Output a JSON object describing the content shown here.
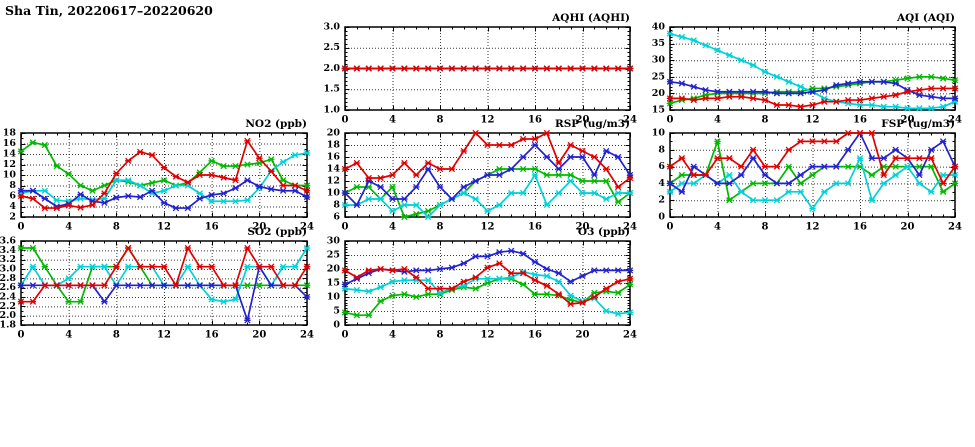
{
  "page": {
    "title": "Sha Tin, 20220617–20220620"
  },
  "colors": {
    "red": "#e10000",
    "green": "#00b900",
    "blue": "#2222d0",
    "cyan": "#00d2d8"
  },
  "chart_data": [
    {
      "id": "aqhi",
      "type": "line",
      "title": "AQHI (AQHI)",
      "xlim": [
        0,
        24
      ],
      "x_ticks": [
        0,
        4,
        8,
        12,
        16,
        20,
        24
      ],
      "x_minor": 1,
      "x_start": 0,
      "x_step": 1,
      "ylim": [
        1.0,
        3.0
      ],
      "y_major": 0.5,
      "y_minor": 0.1,
      "y_decimals": 1,
      "grid": true,
      "legend": "none",
      "series": [
        {
          "name": "green",
          "color": "#00b900",
          "values": [
            2,
            2,
            2,
            2,
            2,
            2,
            2,
            2,
            2,
            2,
            2,
            2,
            2,
            2,
            2,
            2,
            2,
            2,
            2,
            2,
            2,
            2,
            2,
            2,
            2
          ]
        },
        {
          "name": "cyan",
          "color": "#00d2d8",
          "values": [
            2,
            2,
            2,
            2,
            2,
            2,
            2,
            2,
            2,
            2,
            2,
            2,
            2,
            2,
            2,
            2,
            2,
            2,
            2,
            2,
            2,
            2,
            2,
            2,
            2
          ]
        },
        {
          "name": "blue",
          "color": "#2222d0",
          "values": [
            2,
            2,
            2,
            2,
            2,
            2,
            2,
            2,
            2,
            2,
            2,
            2,
            2,
            2,
            2,
            2,
            2,
            2,
            2,
            2,
            2,
            2,
            2,
            2,
            2
          ]
        },
        {
          "name": "red",
          "color": "#e10000",
          "values": [
            2,
            2,
            2,
            2,
            2,
            2,
            2,
            2,
            2,
            2,
            2,
            2,
            2,
            2,
            2,
            2,
            2,
            2,
            2,
            2,
            2,
            2,
            2,
            2,
            2
          ]
        }
      ]
    },
    {
      "id": "aqi",
      "type": "line",
      "title": "AQI (AQI)",
      "xlim": [
        0,
        24
      ],
      "x_ticks": [
        0,
        4,
        8,
        12,
        16,
        20,
        24
      ],
      "x_minor": 1,
      "x_start": 0,
      "x_step": 1,
      "ylim": [
        15,
        40
      ],
      "y_major": 5,
      "y_minor": 1,
      "y_decimals": 0,
      "grid": true,
      "legend": "none",
      "series": [
        {
          "name": "green",
          "color": "#00b900",
          "values": [
            17,
            18,
            18.5,
            19.5,
            20,
            20,
            20,
            20,
            20,
            20.5,
            20.5,
            20.5,
            21.5,
            21.5,
            22,
            22.5,
            23,
            23.5,
            23.5,
            24,
            24.5,
            25,
            25,
            24.5,
            24
          ]
        },
        {
          "name": "cyan",
          "color": "#00d2d8",
          "values": [
            38,
            37,
            36,
            34.5,
            33,
            31.5,
            30,
            28.5,
            26.5,
            25,
            23.5,
            22,
            20.5,
            18.5,
            17.5,
            17,
            16.5,
            16.5,
            16,
            16,
            15.5,
            15.5,
            15.5,
            16,
            17.5
          ]
        },
        {
          "name": "blue",
          "color": "#2222d0",
          "values": [
            23.5,
            23,
            22,
            21,
            20.5,
            20.5,
            20.5,
            20.5,
            20.5,
            20,
            20,
            20,
            20.5,
            21,
            22.5,
            23,
            23.5,
            23.5,
            23.5,
            23,
            21,
            19.5,
            19,
            18.5,
            18.5
          ]
        },
        {
          "name": "red",
          "color": "#e10000",
          "values": [
            18.5,
            18.5,
            18,
            18.5,
            18.5,
            19,
            19,
            18.5,
            18,
            16.5,
            16.5,
            16,
            16.5,
            17.5,
            17.5,
            18,
            18,
            18.5,
            19,
            19.5,
            20.5,
            21,
            21.5,
            21.5,
            21.5
          ]
        }
      ]
    },
    {
      "id": "no2",
      "type": "line",
      "title": "NO2 (ppb)",
      "xlim": [
        0,
        24
      ],
      "x_ticks": [
        0,
        4,
        8,
        12,
        16,
        20,
        24
      ],
      "x_minor": 1,
      "x_start": 0,
      "x_step": 1,
      "ylim": [
        2,
        18
      ],
      "y_major": 2,
      "y_minor": 1,
      "y_decimals": 0,
      "grid": true,
      "legend": "none",
      "series": [
        {
          "name": "green",
          "color": "#00b900",
          "values": [
            14.5,
            16.2,
            15.7,
            11.7,
            10.2,
            8,
            7,
            8,
            9,
            8.7,
            8,
            8.5,
            9,
            8,
            8.5,
            10.5,
            12.7,
            11.7,
            11.7,
            12,
            12.3,
            13,
            9,
            8,
            8
          ]
        },
        {
          "name": "cyan",
          "color": "#00d2d8",
          "values": [
            6.5,
            7,
            7,
            5.2,
            5,
            5.5,
            5.3,
            5.5,
            9,
            9,
            8,
            6.5,
            7,
            8,
            8,
            6.5,
            5,
            5,
            5,
            5.2,
            7.5,
            10.8,
            12.5,
            13.8,
            14.2
          ]
        },
        {
          "name": "blue",
          "color": "#2222d0",
          "values": [
            7,
            7,
            5.5,
            4,
            4.5,
            6.3,
            5,
            4.7,
            5.7,
            6,
            5.8,
            7,
            4.7,
            3.7,
            3.7,
            5.5,
            6.2,
            6.5,
            7.5,
            9,
            7.8,
            7.3,
            7,
            7,
            5.8
          ]
        },
        {
          "name": "red",
          "color": "#e10000",
          "values": [
            6,
            5.5,
            3.7,
            3.7,
            4.2,
            3.8,
            4.3,
            6.5,
            10.3,
            12.7,
            14.4,
            13.8,
            11.4,
            9.7,
            8.6,
            10,
            10,
            9.5,
            9,
            16.5,
            13.2,
            10.7,
            8,
            8,
            7
          ]
        }
      ]
    },
    {
      "id": "rsp",
      "type": "line",
      "title": "RSP (ug/m3)",
      "xlim": [
        0,
        24
      ],
      "x_ticks": [
        0,
        4,
        8,
        12,
        16,
        20,
        24
      ],
      "x_minor": 1,
      "x_start": 0,
      "x_step": 1,
      "ylim": [
        6,
        20
      ],
      "y_major": 2,
      "y_minor": 1,
      "y_decimals": 0,
      "grid": true,
      "legend": "none",
      "series": [
        {
          "name": "green",
          "color": "#00b900",
          "values": [
            10,
            11,
            11,
            9,
            11,
            6,
            6.5,
            7,
            8,
            9,
            10,
            12,
            13,
            14,
            14,
            14,
            14,
            13,
            13,
            13,
            12,
            12,
            12,
            8.5,
            10
          ]
        },
        {
          "name": "cyan",
          "color": "#00d2d8",
          "values": [
            8,
            8,
            9,
            9,
            7,
            8,
            8,
            6,
            8,
            9,
            10,
            9,
            7,
            8,
            10,
            10,
            13,
            8,
            10,
            12,
            10,
            10,
            9,
            10,
            10
          ]
        },
        {
          "name": "blue",
          "color": "#2222d0",
          "values": [
            10,
            8,
            12,
            11,
            9,
            9,
            11,
            14,
            11,
            9,
            11,
            12,
            13,
            13,
            14,
            16,
            18,
            16,
            14,
            16,
            16,
            13,
            17,
            16,
            13
          ]
        },
        {
          "name": "red",
          "color": "#e10000",
          "values": [
            14,
            15,
            12.5,
            12.5,
            13,
            15,
            13,
            15,
            14,
            14,
            17,
            20,
            18,
            18,
            18,
            19,
            19,
            20,
            15,
            18,
            17,
            16,
            14,
            11,
            12.5
          ]
        }
      ]
    },
    {
      "id": "fsp",
      "type": "line",
      "title": "FSP (ug/m3)",
      "xlim": [
        0,
        24
      ],
      "x_ticks": [
        0,
        4,
        8,
        12,
        16,
        20,
        24
      ],
      "x_minor": 1,
      "x_start": 0,
      "x_step": 1,
      "ylim": [
        0,
        10
      ],
      "y_major": 2,
      "y_minor": 1,
      "y_decimals": 0,
      "grid": true,
      "legend": "none",
      "series": [
        {
          "name": "green",
          "color": "#00b900",
          "values": [
            4,
            5,
            5,
            5,
            9,
            2,
            3,
            4,
            4,
            4,
            6,
            4,
            5,
            6,
            6,
            6,
            6,
            5,
            6,
            6,
            6,
            6,
            6,
            3,
            4
          ]
        },
        {
          "name": "cyan",
          "color": "#00d2d8",
          "values": [
            3,
            4,
            4,
            5,
            4,
            5,
            3,
            2,
            2,
            2,
            3,
            3,
            1,
            3,
            4,
            4,
            7,
            2,
            4,
            5,
            6,
            4,
            3,
            5,
            5
          ]
        },
        {
          "name": "blue",
          "color": "#2222d0",
          "values": [
            4,
            3,
            6,
            5,
            4,
            4,
            5,
            7,
            5,
            4,
            4,
            5,
            6,
            6,
            6,
            8,
            10,
            7,
            7,
            8,
            7,
            5,
            8,
            9,
            6
          ]
        },
        {
          "name": "red",
          "color": "#e10000",
          "values": [
            6,
            7,
            5,
            5,
            7,
            7,
            6,
            8,
            6,
            6,
            8,
            9,
            9,
            9,
            9,
            10,
            10,
            10,
            5,
            7,
            7,
            7,
            7,
            4,
            6
          ]
        }
      ]
    },
    {
      "id": "so2",
      "type": "line",
      "title": "SO2 (ppb)",
      "xlim": [
        0,
        24
      ],
      "x_ticks": [
        0,
        4,
        8,
        12,
        16,
        20,
        24
      ],
      "x_minor": 1,
      "x_start": 0,
      "x_step": 1,
      "ylim": [
        1.8,
        3.6
      ],
      "y_major": 0.2,
      "y_minor": 0.1,
      "y_decimals": 1,
      "grid": true,
      "legend": "none",
      "series": [
        {
          "name": "green",
          "color": "#00b900",
          "values": [
            3.45,
            3.45,
            3.05,
            2.65,
            2.3,
            2.3,
            3.05,
            3.05,
            3.05,
            3.45,
            3.05,
            2.65,
            2.65,
            2.65,
            2.65,
            2.65,
            2.65,
            2.65,
            2.65,
            2.65,
            2.65,
            2.65,
            2.65,
            2.65,
            2.65
          ]
        },
        {
          "name": "cyan",
          "color": "#00d2d8",
          "values": [
            2.65,
            3.05,
            2.65,
            2.65,
            2.8,
            3.05,
            3.05,
            3.05,
            2.65,
            3.05,
            3.05,
            3.05,
            2.65,
            2.65,
            3.05,
            2.65,
            2.35,
            2.3,
            2.35,
            3.05,
            3.05,
            2.65,
            3.05,
            3.05,
            3.45
          ]
        },
        {
          "name": "blue",
          "color": "#2222d0",
          "values": [
            2.65,
            2.65,
            2.65,
            2.65,
            2.65,
            2.65,
            2.65,
            2.3,
            2.65,
            2.65,
            2.65,
            2.65,
            2.65,
            2.65,
            2.65,
            2.65,
            2.65,
            2.65,
            2.65,
            1.9,
            3.05,
            2.65,
            2.65,
            2.65,
            2.4
          ]
        },
        {
          "name": "red",
          "color": "#e10000",
          "values": [
            2.3,
            2.3,
            2.65,
            2.65,
            2.65,
            2.65,
            2.65,
            2.65,
            3.05,
            3.45,
            3.05,
            3.05,
            3.05,
            2.65,
            3.45,
            3.05,
            3.05,
            2.65,
            2.65,
            3.45,
            3.05,
            3.05,
            2.65,
            2.65,
            3.05
          ]
        }
      ]
    },
    {
      "id": "o3",
      "type": "line",
      "title": "O3 (ppb)",
      "xlim": [
        0,
        24
      ],
      "x_ticks": [
        0,
        4,
        8,
        12,
        16,
        20,
        24
      ],
      "x_minor": 1,
      "x_start": 0,
      "x_step": 1,
      "ylim": [
        0,
        30
      ],
      "y_major": 5,
      "y_minor": 1,
      "y_decimals": 0,
      "grid": true,
      "legend": "none",
      "series": [
        {
          "name": "green",
          "color": "#00b900",
          "values": [
            4.5,
            3.5,
            3.5,
            8.5,
            10.5,
            11,
            10,
            11,
            11,
            12.5,
            13.5,
            13,
            15,
            16.5,
            16.5,
            14.5,
            11,
            11,
            10.5,
            9,
            8,
            11.5,
            12,
            11.5,
            14.5
          ]
        },
        {
          "name": "cyan",
          "color": "#00d2d8",
          "values": [
            13,
            12.5,
            12,
            13.5,
            15.5,
            16,
            16,
            16,
            11.5,
            13,
            14,
            16.5,
            16.5,
            16.5,
            17,
            19,
            18,
            17.5,
            15.5,
            10.5,
            8.5,
            9.5,
            5,
            4,
            4.5
          ]
        },
        {
          "name": "blue",
          "color": "#2222d0",
          "values": [
            14.5,
            16.5,
            18.5,
            20,
            19.5,
            19,
            19.5,
            19.5,
            20,
            20.5,
            22,
            24.5,
            24.5,
            26,
            26.5,
            25.5,
            22.5,
            20,
            18.5,
            15.5,
            17.5,
            19.5,
            19.5,
            19.5,
            19.5
          ]
        },
        {
          "name": "red",
          "color": "#e10000",
          "values": [
            19.5,
            17,
            19.5,
            20,
            19.5,
            20,
            17,
            13,
            13,
            13,
            15.5,
            17,
            20.5,
            22,
            18.5,
            18.5,
            16,
            14,
            11,
            7.5,
            8,
            10,
            13,
            15.5,
            16.5
          ]
        }
      ]
    }
  ]
}
